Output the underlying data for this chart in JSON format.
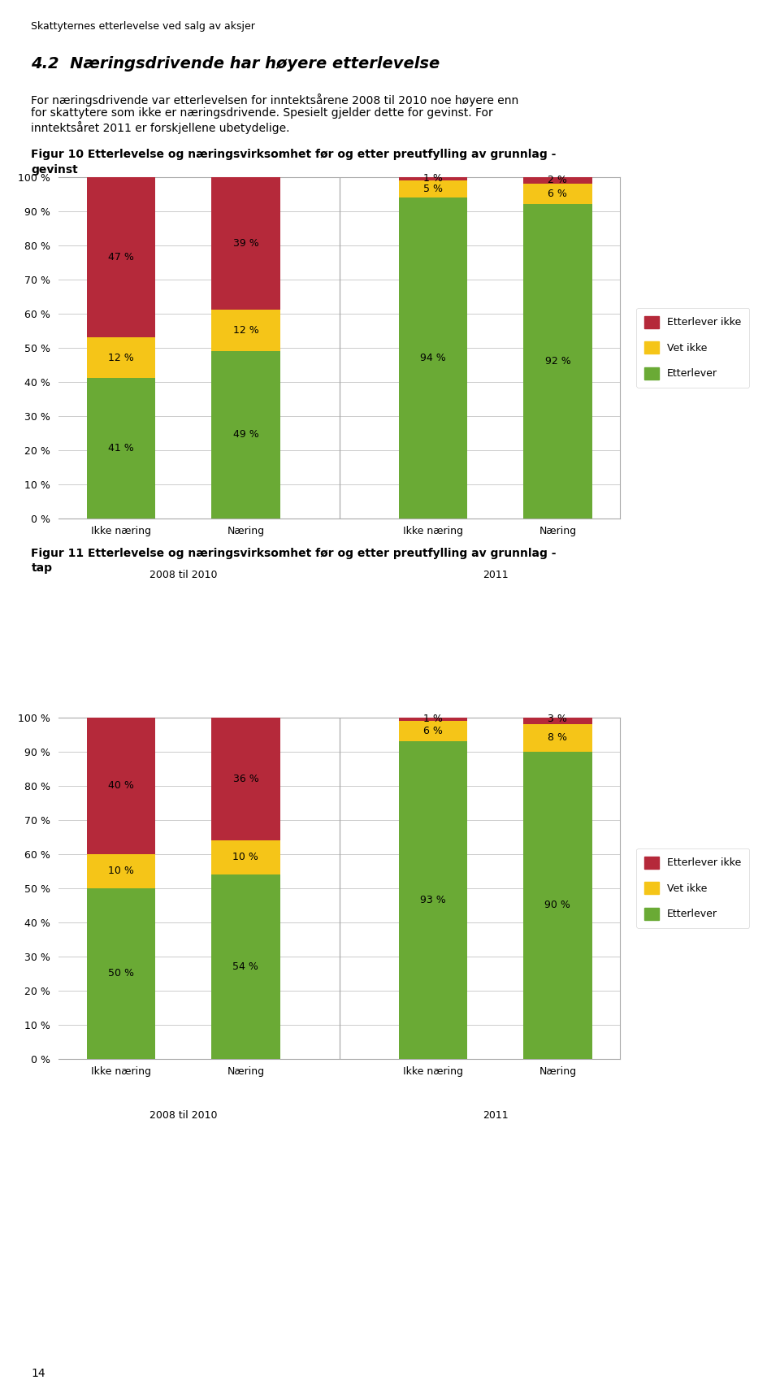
{
  "page_header": "Skattyternes etterlevelse ved salg av aksjer",
  "section_title": "4.2  Næringsdrivende har høyere etterlevelse",
  "body_line1": "For næringsdrivende var etterlevelsen for inntektsårene 2008 til 2010 noe høyere enn",
  "body_line2": "for skattytere som ikke er næringsdrivende. Spesielt gjelder dette for gevinst. For",
  "body_line3": "inntektsåret 2011 er forskjellene ubetydelige.",
  "fig10_title_line1": "Figur 10 Etterlevelse og næringsvirksomhet før og etter preutfylling av grunnlag -",
  "fig10_title_line2": "gevinst",
  "fig11_title_line1": "Figur 11 Etterlevelse og næringsvirksomhet før og etter preutfylling av grunnlag -",
  "fig11_title_line2": "tap",
  "fig10": {
    "categories": [
      "Ikke næring",
      "Næring",
      "Ikke næring",
      "Næring"
    ],
    "group_labels": [
      "2008 til 2010",
      "2011"
    ],
    "etterlever": [
      41,
      49,
      94,
      92
    ],
    "vet_ikke": [
      12,
      12,
      5,
      6
    ],
    "etterlever_ikke": [
      47,
      39,
      1,
      2
    ],
    "etterlever_labels": [
      "41 %",
      "49 %",
      "94 %",
      "92 %"
    ],
    "vet_ikke_labels": [
      "12 %",
      "12 %",
      "5 %",
      "6 %"
    ],
    "etterlever_ikke_labels": [
      "47 %",
      "39 %",
      "1 %",
      "2 %"
    ]
  },
  "fig11": {
    "categories": [
      "Ikke næring",
      "Næring",
      "Ikke næring",
      "Næring"
    ],
    "group_labels": [
      "2008 til 2010",
      "2011"
    ],
    "etterlever": [
      50,
      54,
      93,
      90
    ],
    "vet_ikke": [
      10,
      10,
      6,
      8
    ],
    "etterlever_ikke": [
      40,
      36,
      1,
      3
    ],
    "etterlever_labels": [
      "50 %",
      "54 %",
      "93 %",
      "90 %"
    ],
    "vet_ikke_labels": [
      "10 %",
      "10 %",
      "6 %",
      "8 %"
    ],
    "etterlever_ikke_labels": [
      "40 %",
      "36 %",
      "1 %",
      "3 %"
    ]
  },
  "color_etterlever": "#6aaa35",
  "color_vet_ikke": "#f5c518",
  "color_etterlever_ikke": "#b5293a",
  "bar_width": 0.55,
  "page_number": "14",
  "legend_labels": [
    "Etterlever ikke",
    "Vet ikke",
    "Etterlever"
  ]
}
